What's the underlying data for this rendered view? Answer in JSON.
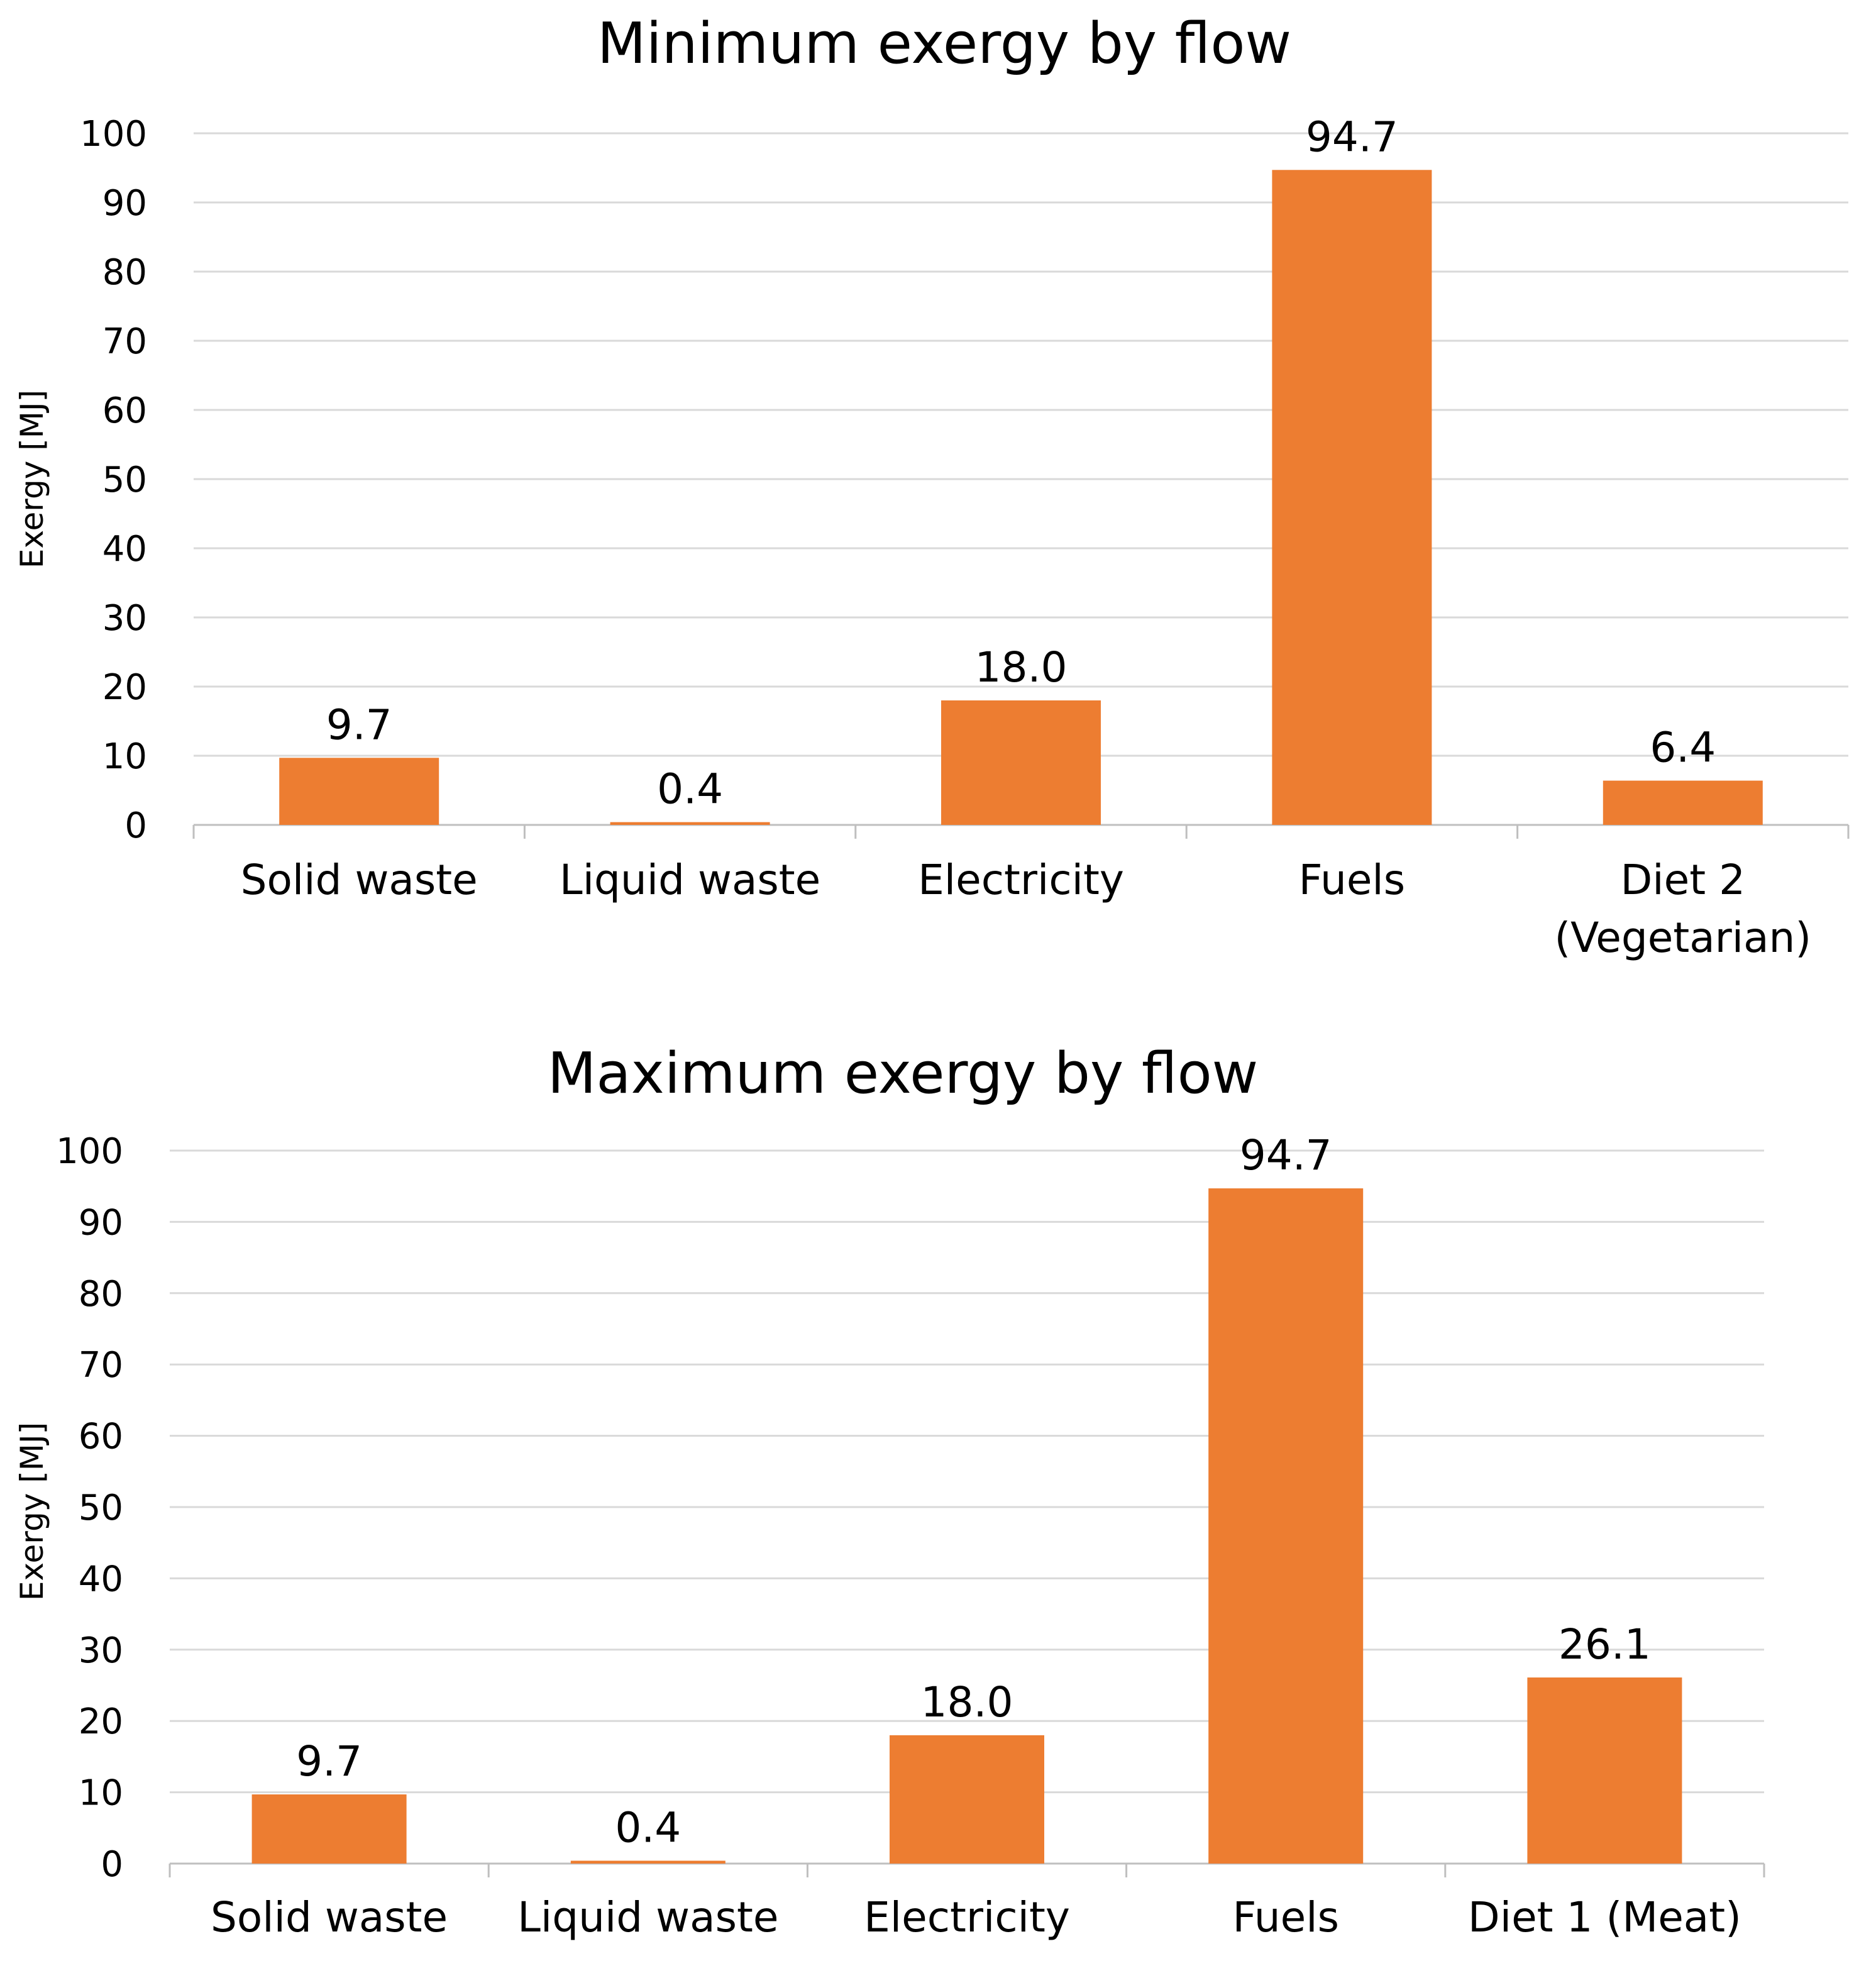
{
  "chart_data": [
    {
      "type": "bar",
      "title": "Minimum exergy by flow",
      "xlabel": "",
      "ylabel": "Exergy [MJ]",
      "ylim": [
        0,
        100
      ],
      "yticks": [
        0,
        10,
        20,
        30,
        40,
        50,
        60,
        70,
        80,
        90,
        100
      ],
      "categories": [
        "Solid waste",
        "Liquid waste",
        "Electricity",
        "Fuels",
        "Diet 2\n(Vegetarian)"
      ],
      "values": [
        9.7,
        0.4,
        18.0,
        94.7,
        6.4
      ],
      "data_labels": [
        "9.7",
        "0.4",
        "18.0",
        "94.7",
        "6.4"
      ],
      "bar_color": "#ED7D31",
      "grid": true,
      "legend": "none"
    },
    {
      "type": "bar",
      "title": "Maximum exergy by flow",
      "xlabel": "",
      "ylabel": "Exergy [MJ]",
      "ylim": [
        0,
        100
      ],
      "yticks": [
        0,
        10,
        20,
        30,
        40,
        50,
        60,
        70,
        80,
        90,
        100
      ],
      "categories": [
        "Solid waste",
        "Liquid waste",
        "Electricity",
        "Fuels",
        "Diet 1 (Meat)"
      ],
      "values": [
        9.7,
        0.4,
        18.0,
        94.7,
        26.1
      ],
      "data_labels": [
        "9.7",
        "0.4",
        "18.0",
        "94.7",
        "26.1"
      ],
      "bar_color": "#ED7D31",
      "grid": true,
      "legend": "none"
    }
  ],
  "colors": {
    "bar": "#ED7D31",
    "grid": "#D9D9D9",
    "axis": "#BFBFBF",
    "text": "#000000"
  }
}
